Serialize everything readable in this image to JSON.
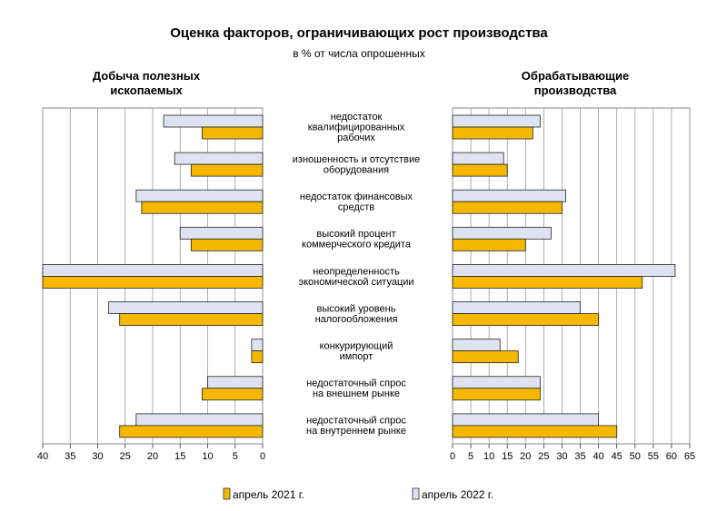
{
  "chart_data": {
    "type": "bar",
    "title": "Оценка факторов, ограничивающих рост производства",
    "subtitle": "в % от числа опрошенных",
    "categories": [
      "недостаток квалифицированных рабочих",
      "изношенность и отсутствие оборудования",
      "недостаток финансовых средств",
      "высокий процент коммерческого кредита",
      "неопределенность экономической ситуации",
      "высокий уровень налогообложения",
      "конкурирующий импорт",
      "недостаточный спрос на внешнем рынке",
      "недостаточный спрос на внутреннем рынке"
    ],
    "category_lines": [
      [
        "недостаток",
        "квалифицированных",
        "рабочих"
      ],
      [
        "изношенность и отсутствие",
        "оборудования"
      ],
      [
        "недостаток финансовых",
        "средств"
      ],
      [
        "высокий процент",
        "коммерческого кредита"
      ],
      [
        "неопределенность",
        "экономической ситуации"
      ],
      [
        "высокий уровень",
        "налогообложения"
      ],
      [
        "конкурирующий",
        "импорт"
      ],
      [
        "недостаточный спрос",
        "на внешнем рынке"
      ],
      [
        "недостаточный спрос",
        "на внутреннем рынке"
      ]
    ],
    "panels": [
      {
        "title_lines": [
          "Добыча полезных",
          "ископаемых"
        ],
        "direction": "reversed",
        "xlim": [
          0,
          40
        ],
        "ticks": [
          40,
          35,
          30,
          25,
          20,
          15,
          10,
          5,
          0
        ],
        "series": [
          {
            "name": "апрель 2022 г.",
            "values": [
              18,
              16,
              23,
              15,
              40,
              28,
              2,
              10,
              23
            ]
          },
          {
            "name": "апрель 2021 г.",
            "values": [
              11,
              13,
              22,
              13,
              40,
              26,
              2,
              11,
              26
            ]
          }
        ]
      },
      {
        "title_lines": [
          "Обрабатывающие",
          "производства"
        ],
        "direction": "normal",
        "xlim": [
          0,
          65
        ],
        "ticks": [
          0,
          5,
          10,
          15,
          20,
          25,
          30,
          35,
          40,
          45,
          50,
          55,
          60,
          65
        ],
        "series": [
          {
            "name": "апрель 2022 г.",
            "values": [
              24,
              14,
              31,
              27,
              61,
              35,
              13,
              24,
              40
            ]
          },
          {
            "name": "апрель 2021 г.",
            "values": [
              22,
              15,
              30,
              20,
              52,
              40,
              18,
              24,
              45
            ]
          }
        ]
      }
    ],
    "legend": [
      {
        "name": "апрель 2021 г.",
        "color": "#F5B800"
      },
      {
        "name": "апрель 2022 г.",
        "color": "#DDE3F0"
      }
    ],
    "legend_position": "bottom",
    "grid": true,
    "colors": {
      "apr2021": "#F5B800",
      "apr2022": "#DDE3F0",
      "grid": "#9a9a9a"
    }
  }
}
